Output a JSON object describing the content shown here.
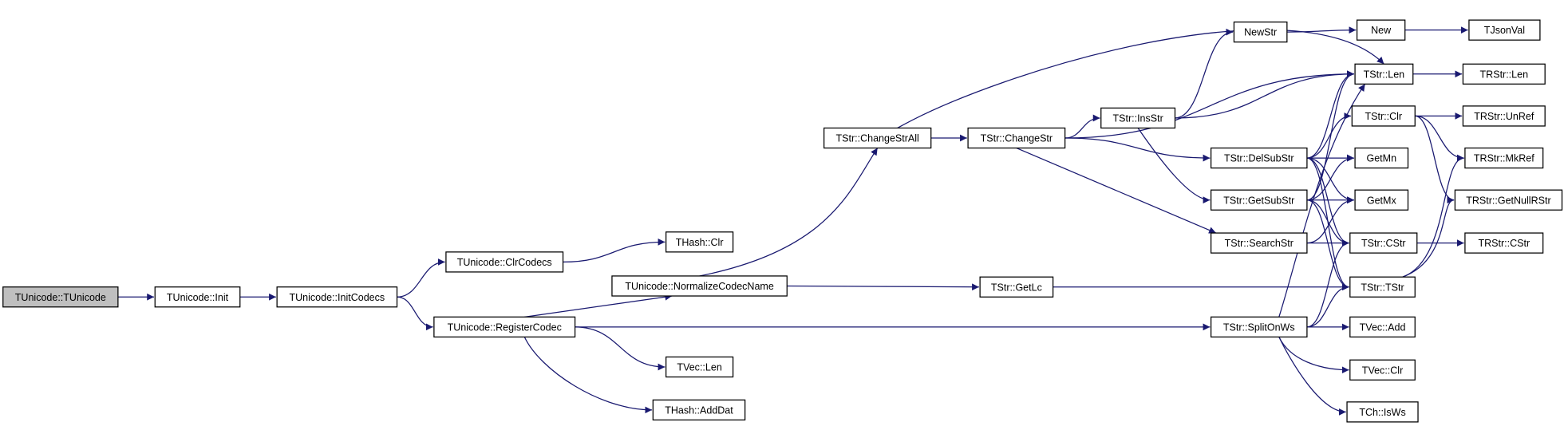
{
  "nodes": [
    {
      "label": "TUnicode::TUnicode"
    },
    {
      "label": "TUnicode::Init"
    },
    {
      "label": "TUnicode::InitCodecs"
    },
    {
      "label": "TUnicode::ClrCodecs"
    },
    {
      "label": "TUnicode::RegisterCodec"
    },
    {
      "label": "THash::Clr"
    },
    {
      "label": "TUnicode::NormalizeCodecName"
    },
    {
      "label": "TVec::Len"
    },
    {
      "label": "THash::AddDat"
    },
    {
      "label": "TStr::ChangeStrAll"
    },
    {
      "label": "TStr::ChangeStr"
    },
    {
      "label": "TStr::GetLc"
    },
    {
      "label": "TStr::InsStr"
    },
    {
      "label": "NewStr"
    },
    {
      "label": "New"
    },
    {
      "label": "TJsonVal"
    },
    {
      "label": "TStr::Len"
    },
    {
      "label": "TRStr::Len"
    },
    {
      "label": "TStr::DelSubStr"
    },
    {
      "label": "TStr::GetSubStr"
    },
    {
      "label": "TStr::SearchStr"
    },
    {
      "label": "TStr::SplitOnWs"
    },
    {
      "label": "TStr::Clr"
    },
    {
      "label": "GetMn"
    },
    {
      "label": "GetMx"
    },
    {
      "label": "TStr::CStr"
    },
    {
      "label": "TStr::TStr"
    },
    {
      "label": "TRStr::UnRef"
    },
    {
      "label": "TRStr::MkRef"
    },
    {
      "label": "TRStr::GetNullRStr"
    },
    {
      "label": "TRStr::CStr"
    },
    {
      "label": "TVec::Add"
    },
    {
      "label": "TVec::Clr"
    },
    {
      "label": "TCh::IsWs"
    }
  ]
}
